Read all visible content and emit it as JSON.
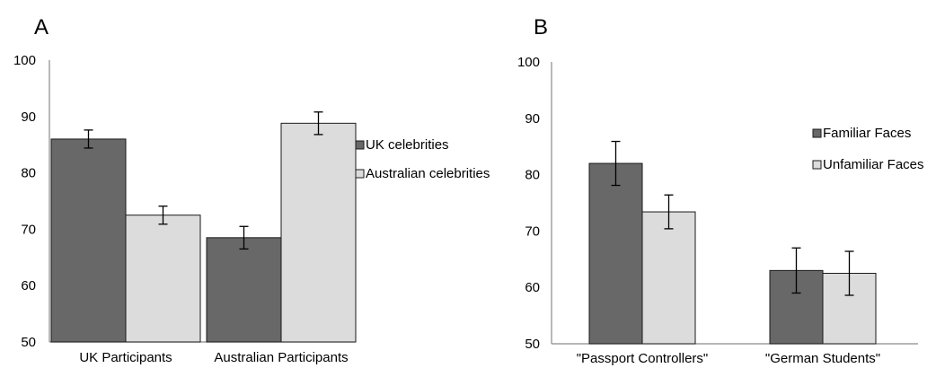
{
  "chart_data": [
    {
      "type": "bar",
      "panel_label": "A",
      "categories": [
        "UK Participants",
        "Australian Participants"
      ],
      "series": [
        {
          "name": "UK celebrities",
          "color": "#686868",
          "values": [
            86,
            68.5
          ],
          "errors": [
            1.6,
            2.0
          ]
        },
        {
          "name": "Australian celebrities",
          "color": "#dcdcdc",
          "values": [
            72.5,
            88.8
          ],
          "errors": [
            1.6,
            2.0
          ]
        }
      ],
      "ylim": [
        50,
        100
      ],
      "yticks": [
        "50",
        "60",
        "70",
        "80",
        "90",
        "100"
      ],
      "grid": false,
      "legend_position": "right"
    },
    {
      "type": "bar",
      "panel_label": "B",
      "categories": [
        "\"Passport Controllers\"",
        "\"German Students\""
      ],
      "series": [
        {
          "name": "Familiar Faces",
          "color": "#686868",
          "values": [
            82,
            63
          ],
          "errors": [
            3.9,
            4.0
          ]
        },
        {
          "name": "Unfamiliar Faces",
          "color": "#dcdcdc",
          "values": [
            73.4,
            62.5
          ],
          "errors": [
            3.0,
            3.9
          ]
        }
      ],
      "ylim": [
        50,
        100
      ],
      "yticks": [
        "50",
        "60",
        "70",
        "80",
        "90",
        "100"
      ],
      "grid": false,
      "legend_position": "right"
    }
  ]
}
